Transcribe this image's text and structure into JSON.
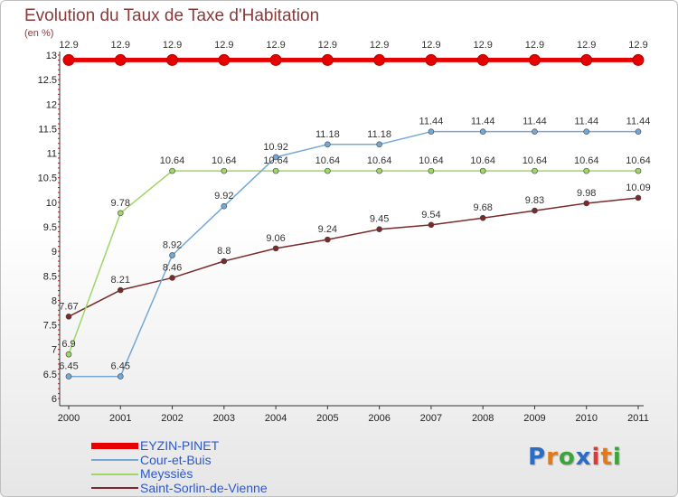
{
  "title": "Evolution du Taux de Taxe d'Habitation",
  "unit": "(en %)",
  "logo": {
    "letters": [
      "P",
      "r",
      "o",
      "x",
      "i",
      "t",
      "i"
    ],
    "colors": [
      "#2b6cc4",
      "#e07a1a",
      "#3aa63a",
      "#2b6cc4",
      "#d93b3b",
      "#e07a1a",
      "#3aa63a"
    ]
  },
  "chart_data": {
    "type": "line",
    "title": "Evolution du Taux de Taxe d'Habitation",
    "ylabel": "(en %)",
    "xlabel": "",
    "x": [
      "2000",
      "2001",
      "2002",
      "2003",
      "2004",
      "2005",
      "2006",
      "2007",
      "2008",
      "2009",
      "2010",
      "2011"
    ],
    "ylim": [
      6,
      13
    ],
    "yticks": [
      "6",
      "6.5",
      "7",
      "7.5",
      "8",
      "8.5",
      "9",
      "9.5",
      "10",
      "10.5",
      "11",
      "11.5",
      "12",
      "12.5",
      "13"
    ],
    "grid": false,
    "legend_position": "bottom-left",
    "series": [
      {
        "name": "EYZIN-PINET",
        "color": "#e60000",
        "values": [
          12.9,
          12.9,
          12.9,
          12.9,
          12.9,
          12.9,
          12.9,
          12.9,
          12.9,
          12.9,
          12.9,
          12.9
        ],
        "labels": [
          "12.9",
          "12.9",
          "12.9",
          "12.9",
          "12.9",
          "12.9",
          "12.9",
          "12.9",
          "12.9",
          "12.9",
          "12.9",
          "12.9"
        ]
      },
      {
        "name": "Cour-et-Buis",
        "color": "#74a8d6",
        "values": [
          6.45,
          6.45,
          8.92,
          9.92,
          10.92,
          11.18,
          11.18,
          11.44,
          11.44,
          11.44,
          11.44,
          11.44
        ],
        "labels": [
          "6.45",
          "6.45",
          "8.92",
          "9.92",
          "10.92",
          "11.18",
          "11.18",
          "11.44",
          "11.44",
          "11.44",
          "11.44",
          "11.44"
        ]
      },
      {
        "name": "Meyssiès",
        "color": "#9ed667",
        "values": [
          6.9,
          9.78,
          10.64,
          10.64,
          10.64,
          10.64,
          10.64,
          10.64,
          10.64,
          10.64,
          10.64,
          10.64
        ],
        "labels": [
          "6.9",
          "9.78",
          "10.64",
          "10.64",
          "10.64",
          "10.64",
          "10.64",
          "10.64",
          "10.64",
          "10.64",
          "10.64",
          "10.64"
        ]
      },
      {
        "name": "Saint-Sorlin-de-Vienne",
        "color": "#7a2a2a",
        "values": [
          7.67,
          8.21,
          8.46,
          8.8,
          9.06,
          9.24,
          9.45,
          9.54,
          9.68,
          9.83,
          9.98,
          10.09
        ],
        "labels": [
          "7.67",
          "8.21",
          "8.46",
          "8.8",
          "9.06",
          "9.24",
          "9.45",
          "9.54",
          "9.68",
          "9.83",
          "9.98",
          "10.09"
        ]
      }
    ]
  }
}
